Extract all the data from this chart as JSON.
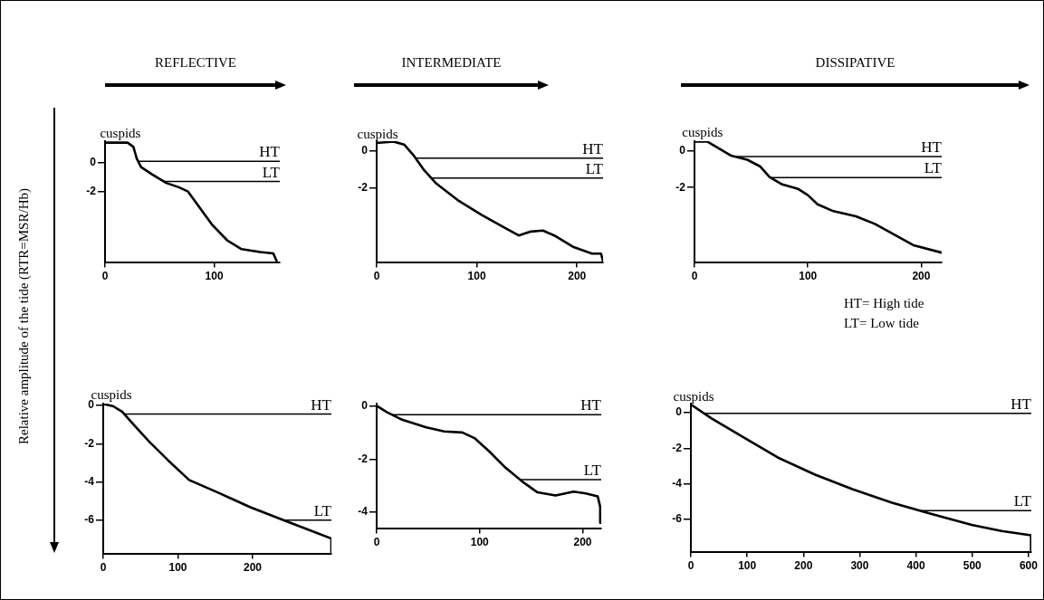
{
  "chart_data": [
    {
      "type": "line",
      "title": "REFLECTIVE",
      "ylabel": "Relative amplitude of the tide (RTR=MSR/Hb)",
      "xlim": [
        0,
        160
      ],
      "xticks": [
        0,
        100
      ],
      "ylim": [
        -6.9,
        1.5
      ],
      "yticks": [
        0,
        -2
      ],
      "series": [
        {
          "color": "#000000",
          "x": [
            0,
            20.7,
            26,
            29,
            33,
            43,
            56,
            67.5,
            76,
            87,
            98,
            112,
            125,
            142,
            154,
            157
          ],
          "values": [
            1.4,
            1.4,
            1.1,
            0.3,
            -0.3,
            -0.8,
            -1.4,
            -1.7,
            -2.0,
            -3.15,
            -4.3,
            -5.4,
            -6.0,
            -6.2,
            -6.3,
            -6.8
          ]
        }
      ],
      "ref_lines": [
        {
          "axis": "y",
          "value": 0.1,
          "label": "HT"
        },
        {
          "axis": "y",
          "value": -1.3,
          "label": "LT"
        }
      ],
      "annotations": [
        {
          "text": "cuspids",
          "x": 14,
          "y": 1.4
        }
      ]
    },
    {
      "type": "line",
      "title": "INTERMEDIATE",
      "xlim": [
        0,
        226
      ],
      "xticks": [
        0,
        100,
        200
      ],
      "ylim": [
        -5.95,
        0.5
      ],
      "yticks": [
        0,
        -2
      ],
      "series": [
        {
          "color": "#000000",
          "x": [
            0,
            16.8,
            27.4,
            36.6,
            47.3,
            59.5,
            80.8,
            105,
            126.5,
            141.8,
            154,
            166,
            178.4,
            196.7,
            215,
            224,
            226
          ],
          "values": [
            0.4,
            0.48,
            0.32,
            -0.24,
            -1.04,
            -1.76,
            -2.64,
            -3.44,
            -4.08,
            -4.53,
            -4.32,
            -4.27,
            -4.56,
            -5.15,
            -5.5,
            -5.5,
            -5.9
          ]
        }
      ],
      "ref_lines": [
        {
          "axis": "y",
          "value": -0.4,
          "label": "HT"
        },
        {
          "axis": "y",
          "value": -1.47,
          "label": "LT"
        }
      ],
      "annotations": [
        {
          "text": "cuspids",
          "x": 1,
          "y": 0.4
        }
      ]
    },
    {
      "type": "line",
      "title": "DISSIPATIVE",
      "xlim": [
        0,
        218
      ],
      "xticks": [
        0,
        100,
        200
      ],
      "ylim": [
        -6.1,
        0.55
      ],
      "yticks": [
        0,
        -2
      ],
      "series": [
        {
          "color": "#000000",
          "x": [
            0,
            11.2,
            21,
            32.4,
            46.5,
            57.7,
            66.2,
            77.4,
            91.5,
            100,
            108.5,
            122.5,
            142.3,
            159,
            176,
            193,
            218
          ],
          "values": [
            0.53,
            0.53,
            0.17,
            -0.25,
            -0.47,
            -0.83,
            -1.42,
            -1.83,
            -2.08,
            -2.42,
            -2.92,
            -3.3,
            -3.58,
            -4.0,
            -4.58,
            -5.17,
            -5.58
          ]
        }
      ],
      "ref_lines": [
        {
          "axis": "y",
          "value": -0.3,
          "label": "HT"
        },
        {
          "axis": "y",
          "value": -1.45,
          "label": "LT"
        }
      ],
      "annotations": [
        {
          "text": "cuspids",
          "x": 7,
          "y": 0.53
        },
        "HT= High tide",
        "LT= Low tide"
      ]
    },
    {
      "type": "line",
      "xlim": [
        0,
        305.5
      ],
      "xticks": [
        0,
        100,
        200
      ],
      "ylim": [
        -7.75,
        0.1
      ],
      "yticks": [
        0,
        -2,
        -4,
        -6
      ],
      "series": [
        {
          "color": "#000000",
          "x": [
            0,
            13,
            25.3,
            41.7,
            62,
            86.6,
            115,
            156,
            197,
            250,
            305.5,
            305.5
          ],
          "values": [
            0.08,
            -0.03,
            -0.32,
            -1.04,
            -1.91,
            -2.86,
            -3.9,
            -4.6,
            -5.33,
            -6.13,
            -6.97,
            -7.75
          ]
        }
      ],
      "ref_lines": [
        {
          "axis": "y",
          "value": -0.45,
          "label": "HT"
        },
        {
          "axis": "y",
          "value": -6.0,
          "label": "LT"
        }
      ],
      "annotations": [
        {
          "text": "cuspids",
          "x": 11,
          "y": 0.08
        }
      ]
    },
    {
      "type": "line",
      "xlim": [
        0,
        218
      ],
      "xticks": [
        0,
        100,
        200
      ],
      "ylim": [
        -4.6,
        0.1
      ],
      "yticks": [
        0,
        -2,
        -4
      ],
      "series": [
        {
          "color": "#000000",
          "x": [
            0,
            10.2,
            24.8,
            48.2,
            65.7,
            83.2,
            94.9,
            109.5,
            124,
            141.6,
            156.2,
            173.7,
            191.2,
            203,
            214.6,
            217,
            217
          ],
          "values": [
            0.02,
            -0.23,
            -0.51,
            -0.8,
            -0.95,
            -0.99,
            -1.2,
            -1.71,
            -2.28,
            -2.85,
            -3.25,
            -3.37,
            -3.22,
            -3.29,
            -3.4,
            -3.8,
            -4.4
          ]
        }
      ],
      "ref_lines": [
        {
          "axis": "y",
          "value": -0.32,
          "label": "HT"
        },
        {
          "axis": "y",
          "value": -2.77,
          "label": "LT"
        }
      ]
    },
    {
      "type": "line",
      "xlim": [
        0,
        605
      ],
      "xticks": [
        0,
        100,
        200,
        300,
        400,
        500,
        600
      ],
      "ylim": [
        -7.8,
        0.5
      ],
      "yticks": [
        0,
        -2,
        -4,
        -6
      ],
      "series": [
        {
          "color": "#000000",
          "x": [
            0,
            36.8,
            94.6,
            157.7,
            220.8,
            288,
            357.4,
            431,
            499,
            552,
            604.5,
            604.5
          ],
          "values": [
            0.45,
            -0.33,
            -1.41,
            -2.57,
            -3.48,
            -4.31,
            -5.06,
            -5.72,
            -6.3,
            -6.64,
            -6.88,
            -7.8
          ]
        }
      ],
      "ref_lines": [
        {
          "axis": "y",
          "value": -0.05,
          "label": "HT"
        },
        {
          "axis": "y",
          "value": -5.5,
          "label": "LT"
        }
      ],
      "annotations": [
        {
          "text": "cuspids",
          "x": 5,
          "y": 0.35
        }
      ]
    }
  ]
}
